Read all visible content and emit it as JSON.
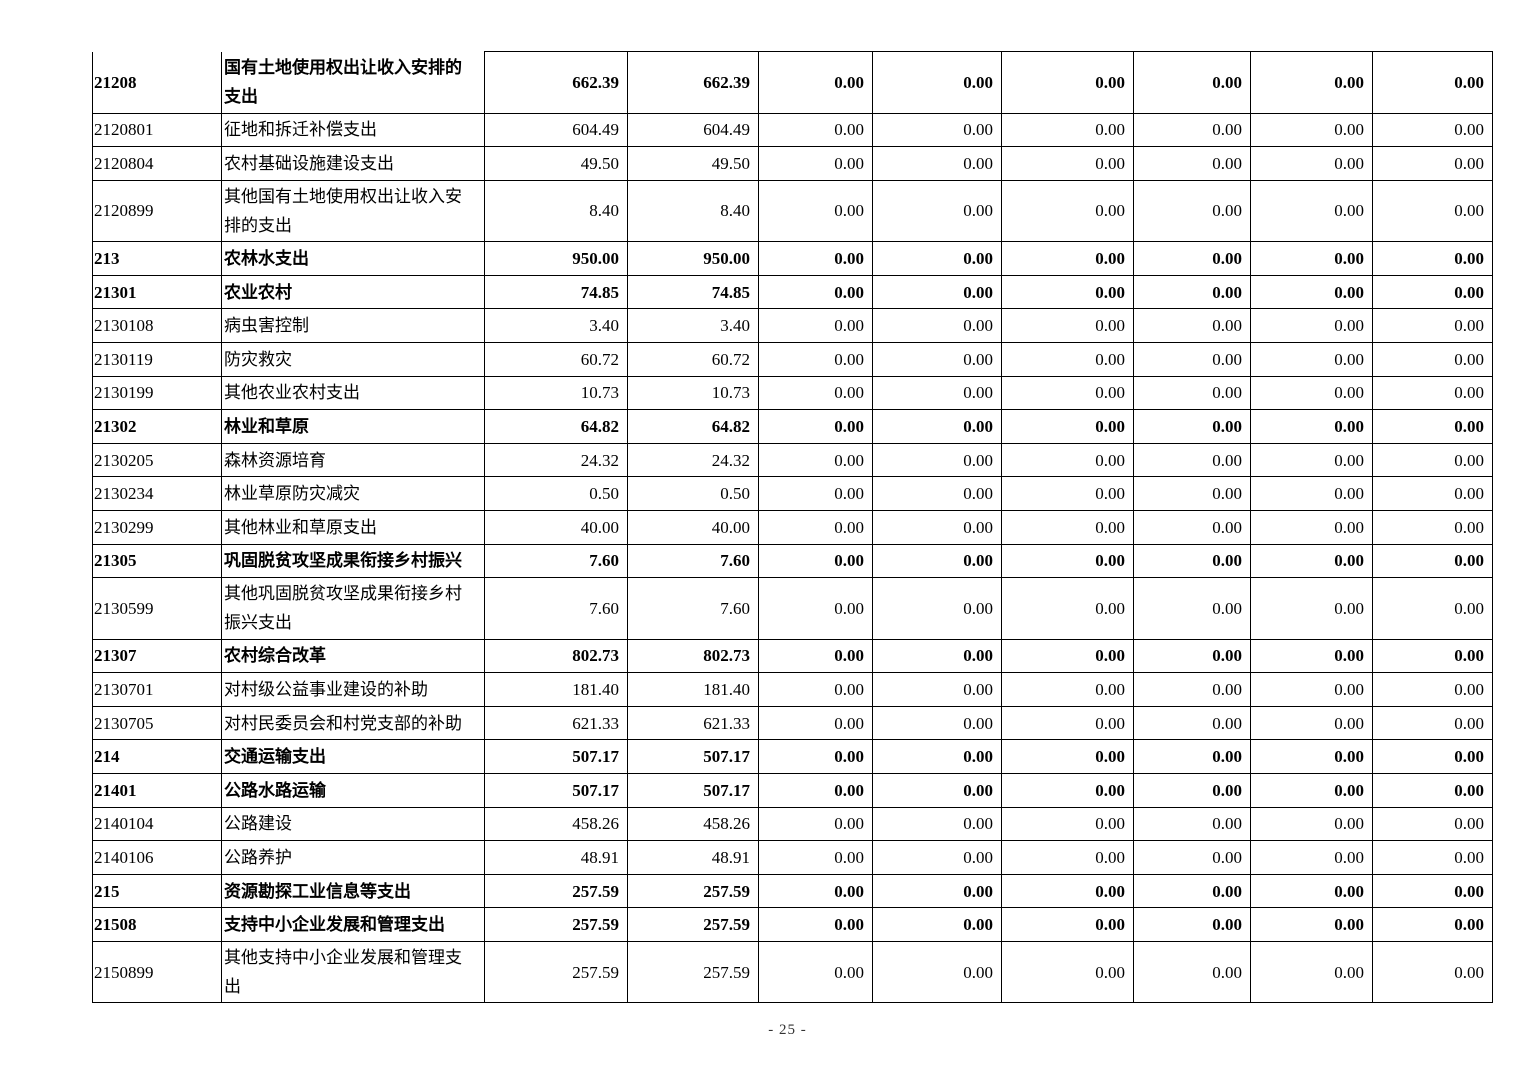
{
  "table": {
    "rows": [
      {
        "code": "21208",
        "name": "国有土地使用权出让收入安排的支出",
        "bold": true,
        "values": [
          "662.39",
          "662.39",
          "0.00",
          "0.00",
          "0.00",
          "0.00",
          "0.00",
          "0.00"
        ]
      },
      {
        "code": "2120801",
        "name": "征地和拆迁补偿支出",
        "bold": false,
        "values": [
          "604.49",
          "604.49",
          "0.00",
          "0.00",
          "0.00",
          "0.00",
          "0.00",
          "0.00"
        ]
      },
      {
        "code": "2120804",
        "name": "农村基础设施建设支出",
        "bold": false,
        "values": [
          "49.50",
          "49.50",
          "0.00",
          "0.00",
          "0.00",
          "0.00",
          "0.00",
          "0.00"
        ]
      },
      {
        "code": "2120899",
        "name": "其他国有土地使用权出让收入安排的支出",
        "bold": false,
        "values": [
          "8.40",
          "8.40",
          "0.00",
          "0.00",
          "0.00",
          "0.00",
          "0.00",
          "0.00"
        ]
      },
      {
        "code": "213",
        "name": "农林水支出",
        "bold": true,
        "values": [
          "950.00",
          "950.00",
          "0.00",
          "0.00",
          "0.00",
          "0.00",
          "0.00",
          "0.00"
        ]
      },
      {
        "code": "21301",
        "name": "农业农村",
        "bold": true,
        "values": [
          "74.85",
          "74.85",
          "0.00",
          "0.00",
          "0.00",
          "0.00",
          "0.00",
          "0.00"
        ]
      },
      {
        "code": "2130108",
        "name": "病虫害控制",
        "bold": false,
        "values": [
          "3.40",
          "3.40",
          "0.00",
          "0.00",
          "0.00",
          "0.00",
          "0.00",
          "0.00"
        ]
      },
      {
        "code": "2130119",
        "name": "防灾救灾",
        "bold": false,
        "values": [
          "60.72",
          "60.72",
          "0.00",
          "0.00",
          "0.00",
          "0.00",
          "0.00",
          "0.00"
        ]
      },
      {
        "code": "2130199",
        "name": "其他农业农村支出",
        "bold": false,
        "values": [
          "10.73",
          "10.73",
          "0.00",
          "0.00",
          "0.00",
          "0.00",
          "0.00",
          "0.00"
        ]
      },
      {
        "code": "21302",
        "name": "林业和草原",
        "bold": true,
        "values": [
          "64.82",
          "64.82",
          "0.00",
          "0.00",
          "0.00",
          "0.00",
          "0.00",
          "0.00"
        ]
      },
      {
        "code": "2130205",
        "name": "森林资源培育",
        "bold": false,
        "values": [
          "24.32",
          "24.32",
          "0.00",
          "0.00",
          "0.00",
          "0.00",
          "0.00",
          "0.00"
        ]
      },
      {
        "code": "2130234",
        "name": "林业草原防灾减灾",
        "bold": false,
        "values": [
          "0.50",
          "0.50",
          "0.00",
          "0.00",
          "0.00",
          "0.00",
          "0.00",
          "0.00"
        ]
      },
      {
        "code": "2130299",
        "name": "其他林业和草原支出",
        "bold": false,
        "values": [
          "40.00",
          "40.00",
          "0.00",
          "0.00",
          "0.00",
          "0.00",
          "0.00",
          "0.00"
        ]
      },
      {
        "code": "21305",
        "name": "巩固脱贫攻坚成果衔接乡村振兴",
        "bold": true,
        "values": [
          "7.60",
          "7.60",
          "0.00",
          "0.00",
          "0.00",
          "0.00",
          "0.00",
          "0.00"
        ]
      },
      {
        "code": "2130599",
        "name": "其他巩固脱贫攻坚成果衔接乡村振兴支出",
        "bold": false,
        "values": [
          "7.60",
          "7.60",
          "0.00",
          "0.00",
          "0.00",
          "0.00",
          "0.00",
          "0.00"
        ]
      },
      {
        "code": "21307",
        "name": "农村综合改革",
        "bold": true,
        "values": [
          "802.73",
          "802.73",
          "0.00",
          "0.00",
          "0.00",
          "0.00",
          "0.00",
          "0.00"
        ]
      },
      {
        "code": "2130701",
        "name": "对村级公益事业建设的补助",
        "bold": false,
        "values": [
          "181.40",
          "181.40",
          "0.00",
          "0.00",
          "0.00",
          "0.00",
          "0.00",
          "0.00"
        ]
      },
      {
        "code": "2130705",
        "name": "对村民委员会和村党支部的补助",
        "bold": false,
        "values": [
          "621.33",
          "621.33",
          "0.00",
          "0.00",
          "0.00",
          "0.00",
          "0.00",
          "0.00"
        ]
      },
      {
        "code": "214",
        "name": "交通运输支出",
        "bold": true,
        "values": [
          "507.17",
          "507.17",
          "0.00",
          "0.00",
          "0.00",
          "0.00",
          "0.00",
          "0.00"
        ]
      },
      {
        "code": "21401",
        "name": "公路水路运输",
        "bold": true,
        "values": [
          "507.17",
          "507.17",
          "0.00",
          "0.00",
          "0.00",
          "0.00",
          "0.00",
          "0.00"
        ]
      },
      {
        "code": "2140104",
        "name": "公路建设",
        "bold": false,
        "values": [
          "458.26",
          "458.26",
          "0.00",
          "0.00",
          "0.00",
          "0.00",
          "0.00",
          "0.00"
        ]
      },
      {
        "code": "2140106",
        "name": "公路养护",
        "bold": false,
        "values": [
          "48.91",
          "48.91",
          "0.00",
          "0.00",
          "0.00",
          "0.00",
          "0.00",
          "0.00"
        ]
      },
      {
        "code": "215",
        "name": "资源勘探工业信息等支出",
        "bold": true,
        "values": [
          "257.59",
          "257.59",
          "0.00",
          "0.00",
          "0.00",
          "0.00",
          "0.00",
          "0.00"
        ]
      },
      {
        "code": "21508",
        "name": "支持中小企业发展和管理支出",
        "bold": true,
        "values": [
          "257.59",
          "257.59",
          "0.00",
          "0.00",
          "0.00",
          "0.00",
          "0.00",
          "0.00"
        ]
      },
      {
        "code": "2150899",
        "name": "其他支持中小企业发展和管理支出",
        "bold": false,
        "values": [
          "257.59",
          "257.59",
          "0.00",
          "0.00",
          "0.00",
          "0.00",
          "0.00",
          "0.00"
        ]
      }
    ]
  },
  "footer": {
    "page_number": "- 25 -"
  }
}
